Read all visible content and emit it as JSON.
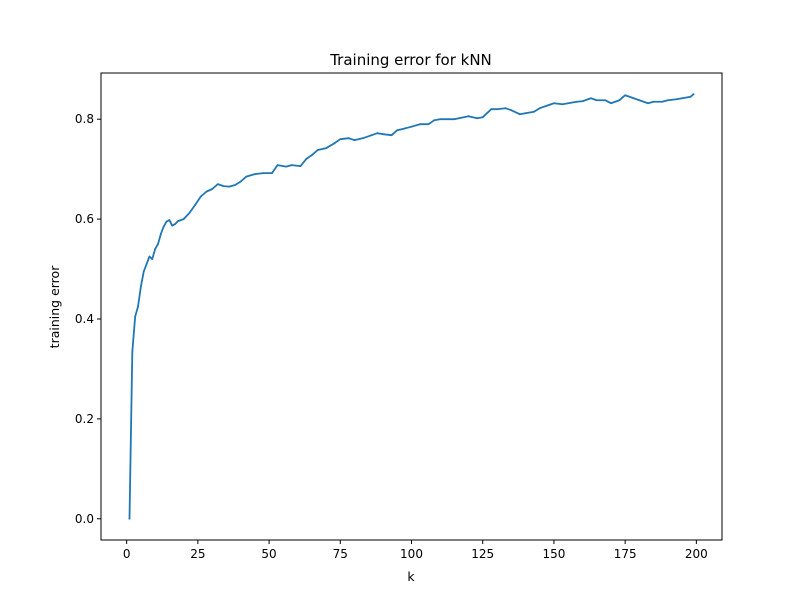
{
  "chart_data": {
    "type": "line",
    "title": "Training error for kNN",
    "xlabel": "k",
    "ylabel": "training error",
    "xlim": [
      -9,
      209
    ],
    "ylim": [
      -0.0425,
      0.8925
    ],
    "xticks": [
      0,
      25,
      50,
      75,
      100,
      125,
      150,
      175,
      200
    ],
    "xtick_labels": [
      "0",
      "25",
      "50",
      "75",
      "100",
      "125",
      "150",
      "175",
      "200"
    ],
    "yticks": [
      0.0,
      0.2,
      0.4,
      0.6,
      0.8
    ],
    "ytick_labels": [
      "0.0",
      "0.2",
      "0.4",
      "0.6",
      "0.8"
    ],
    "grid": false,
    "series": [
      {
        "color": "#1f77b4",
        "x": [
          1,
          2,
          3,
          4,
          5,
          6,
          7,
          8,
          9,
          10,
          11,
          12,
          13,
          14,
          15,
          16,
          17,
          18,
          20,
          22,
          24,
          26,
          28,
          30,
          32,
          34,
          36,
          38,
          40,
          42,
          45,
          48,
          51,
          53,
          56,
          58,
          61,
          63,
          65,
          67,
          70,
          73,
          75,
          78,
          80,
          83,
          86,
          88,
          90,
          93,
          95,
          98,
          100,
          103,
          106,
          108,
          110,
          115,
          120,
          123,
          125,
          128,
          130,
          133,
          135,
          138,
          140,
          143,
          145,
          148,
          150,
          153,
          155,
          158,
          160,
          163,
          165,
          168,
          170,
          173,
          175,
          178,
          180,
          183,
          185,
          188,
          190,
          193,
          195,
          198,
          199
        ],
        "y": [
          0.0,
          0.335,
          0.405,
          0.425,
          0.465,
          0.495,
          0.51,
          0.525,
          0.52,
          0.54,
          0.55,
          0.57,
          0.585,
          0.595,
          0.598,
          0.587,
          0.59,
          0.596,
          0.6,
          0.612,
          0.628,
          0.645,
          0.655,
          0.66,
          0.67,
          0.666,
          0.665,
          0.668,
          0.675,
          0.685,
          0.69,
          0.692,
          0.692,
          0.708,
          0.705,
          0.708,
          0.706,
          0.72,
          0.728,
          0.738,
          0.742,
          0.752,
          0.76,
          0.762,
          0.758,
          0.762,
          0.768,
          0.772,
          0.77,
          0.768,
          0.778,
          0.782,
          0.785,
          0.79,
          0.79,
          0.798,
          0.8,
          0.8,
          0.806,
          0.802,
          0.804,
          0.82,
          0.82,
          0.822,
          0.818,
          0.81,
          0.812,
          0.815,
          0.822,
          0.828,
          0.832,
          0.83,
          0.832,
          0.835,
          0.836,
          0.842,
          0.838,
          0.838,
          0.832,
          0.838,
          0.848,
          0.842,
          0.838,
          0.832,
          0.835,
          0.835,
          0.838,
          0.84,
          0.842,
          0.845,
          0.85
        ]
      }
    ]
  }
}
